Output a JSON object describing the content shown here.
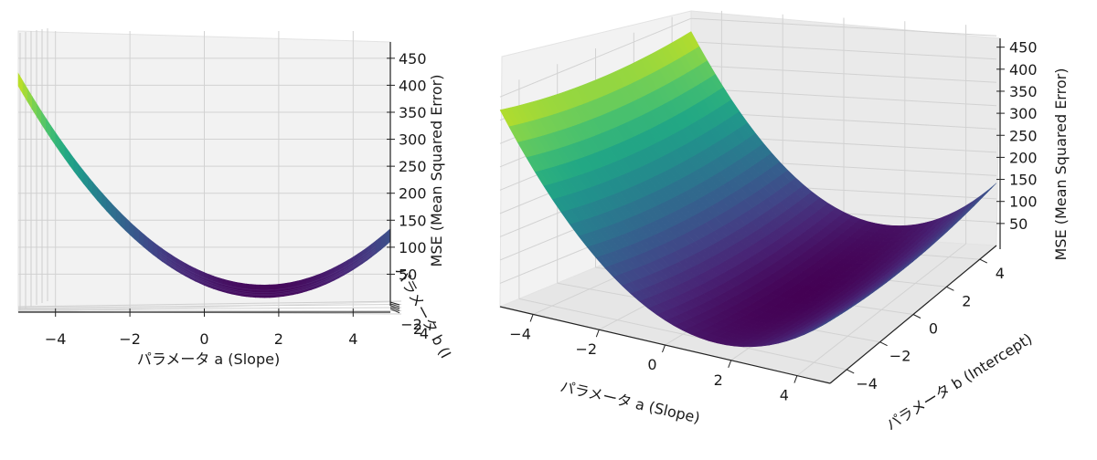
{
  "chart_data": [
    {
      "type": "surface",
      "view": "front (elevation ~0, azimuth ~0)",
      "title": "",
      "xlabel": "パラメータ a (Slope)",
      "ylabel": "パラメータ b (I",
      "zlabel": "MSE (Mean Squared Error)",
      "x_ticks": [
        -4,
        -2,
        0,
        2,
        4
      ],
      "y_ticks": [
        -4,
        -2,
        0,
        2,
        4
      ],
      "z_ticks": [
        50,
        100,
        150,
        200,
        250,
        300,
        350,
        400,
        450
      ],
      "xlim": [
        -5,
        5
      ],
      "ylim": [
        -5,
        5
      ],
      "zlim": [
        0,
        470
      ],
      "colormap": "viridis",
      "grid": true,
      "minimum": {
        "a": 1.6,
        "b": 0.0,
        "mse": 10
      },
      "corners": {
        "a=-5": 460,
        "a=5": 140
      }
    },
    {
      "type": "surface",
      "view": "3d perspective",
      "title": "",
      "xlabel": "パラメータ a (Slope)",
      "ylabel": "パラメータ b (Intercept)",
      "zlabel": "MSE (Mean Squared Error)",
      "x_ticks": [
        -4,
        -2,
        0,
        2,
        4
      ],
      "y_ticks": [
        -4,
        -2,
        0,
        2,
        4
      ],
      "z_ticks": [
        50,
        100,
        150,
        200,
        250,
        300,
        350,
        400,
        450
      ],
      "xlim": [
        -5,
        5
      ],
      "ylim": [
        -5,
        5
      ],
      "zlim": [
        0,
        470
      ],
      "colormap": "viridis",
      "grid": true,
      "surface_function": "MSE = 9.0*(a-1.6)^2 + 0.8*b^2 + 10",
      "minimum": {
        "a": 1.6,
        "b": 0.0,
        "mse": 10
      }
    }
  ]
}
